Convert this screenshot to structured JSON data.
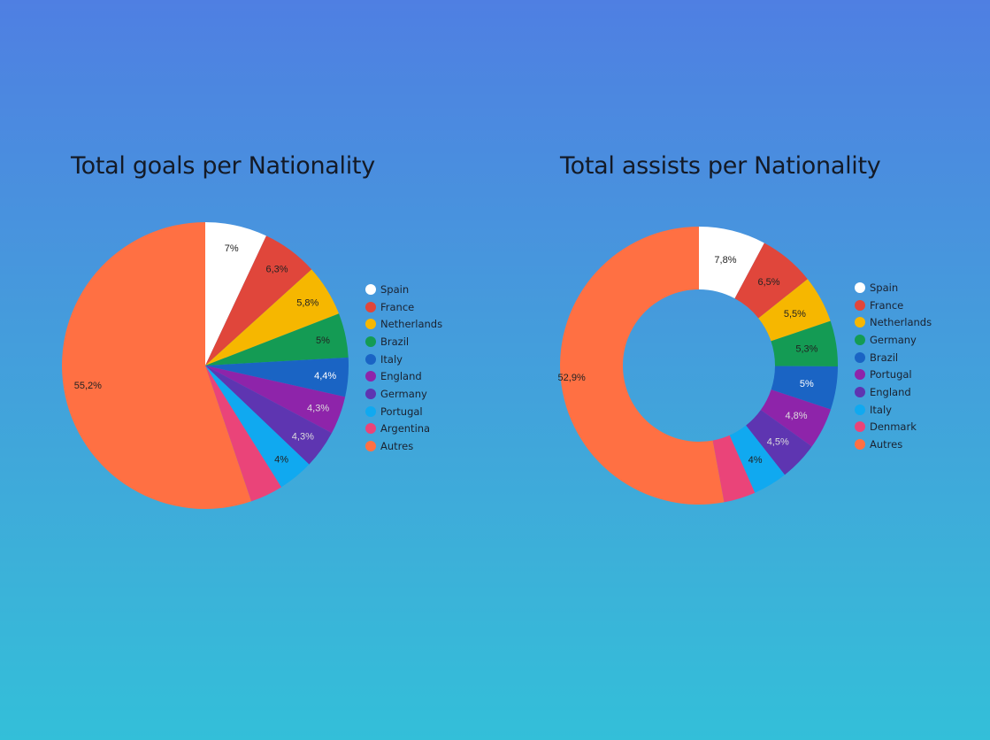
{
  "colors": {
    "white": "#ffffff",
    "red": "#e0463b",
    "amber": "#f6b700",
    "green": "#149b54",
    "blue": "#1a64c4",
    "purple": "#8e24aa",
    "indigo": "#5e35b1",
    "sky": "#10a9f0",
    "pink": "#ea4479",
    "orange": "#ff7043"
  },
  "chart_data": [
    {
      "type": "pie",
      "title": "Total goals per Nationality",
      "legend_position": "right",
      "slices": [
        {
          "name": "Spain",
          "value": 7,
          "label": "7%",
          "color": "#ffffff",
          "text_color": "#222222"
        },
        {
          "name": "France",
          "value": 6.3,
          "label": "6,3%",
          "color": "#e0463b",
          "text_color": "#222222"
        },
        {
          "name": "Netherlands",
          "value": 5.8,
          "label": "5,8%",
          "color": "#f6b700",
          "text_color": "#222222"
        },
        {
          "name": "Brazil",
          "value": 5,
          "label": "5%",
          "color": "#149b54",
          "text_color": "#222222"
        },
        {
          "name": "Italy",
          "value": 4.4,
          "label": "4,4%",
          "color": "#1a64c4",
          "text_color": "#ffffff"
        },
        {
          "name": "England",
          "value": 4.3,
          "label": "4,3%",
          "color": "#8e24aa",
          "text_color": "#dddddd"
        },
        {
          "name": "Germany",
          "value": 4.3,
          "label": "4,3%",
          "color": "#5e35b1",
          "text_color": "#dddddd"
        },
        {
          "name": "Portugal",
          "value": 4,
          "label": "4%",
          "color": "#10a9f0",
          "text_color": "#222222"
        },
        {
          "name": "Argentina",
          "value": 3.7,
          "label": "",
          "color": "#ea4479",
          "text_color": "#222222"
        },
        {
          "name": "Autres",
          "value": 55.2,
          "label": "55,2%",
          "color": "#ff7043",
          "text_color": "#222222"
        }
      ]
    },
    {
      "type": "pie",
      "title": "Total assists per Nationality",
      "legend_position": "right",
      "donut": true,
      "slices": [
        {
          "name": "Spain",
          "value": 7.8,
          "label": "7,8%",
          "color": "#ffffff",
          "text_color": "#222222"
        },
        {
          "name": "France",
          "value": 6.5,
          "label": "6,5%",
          "color": "#e0463b",
          "text_color": "#222222"
        },
        {
          "name": "Netherlands",
          "value": 5.5,
          "label": "5,5%",
          "color": "#f6b700",
          "text_color": "#222222"
        },
        {
          "name": "Germany",
          "value": 5.3,
          "label": "5,3%",
          "color": "#149b54",
          "text_color": "#222222"
        },
        {
          "name": "Brazil",
          "value": 5,
          "label": "5%",
          "color": "#1a64c4",
          "text_color": "#ffffff"
        },
        {
          "name": "Portugal",
          "value": 4.8,
          "label": "4,8%",
          "color": "#8e24aa",
          "text_color": "#dddddd"
        },
        {
          "name": "England",
          "value": 4.5,
          "label": "4,5%",
          "color": "#5e35b1",
          "text_color": "#dddddd"
        },
        {
          "name": "Italy",
          "value": 4,
          "label": "4%",
          "color": "#10a9f0",
          "text_color": "#222222"
        },
        {
          "name": "Denmark",
          "value": 3.7,
          "label": "",
          "color": "#ea4479",
          "text_color": "#222222"
        },
        {
          "name": "Autres",
          "value": 52.9,
          "label": "52,9%",
          "color": "#ff7043",
          "text_color": "#222222"
        }
      ]
    }
  ]
}
